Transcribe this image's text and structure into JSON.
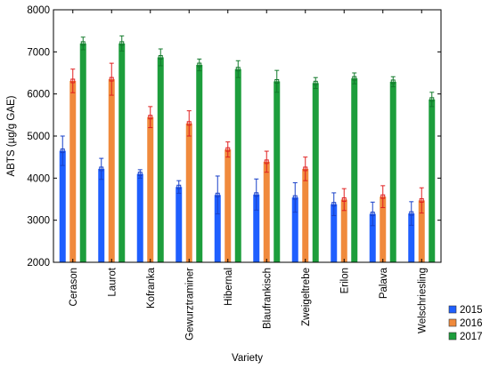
{
  "chart_data": {
    "type": "bar",
    "title": "",
    "xlabel": "Variety",
    "ylabel": "ABTS (µg/g GAE)",
    "ylim": [
      2000,
      8000
    ],
    "yticks": [
      2000,
      3000,
      4000,
      5000,
      6000,
      7000,
      8000
    ],
    "grid": false,
    "legend_position": "bottom-right",
    "categories": [
      "Cerason",
      "Laurot",
      "Kofranka",
      "Gewurztraminer",
      "Hibernal",
      "Blaufrankisch",
      "Zweigeltrebe",
      "Erilon",
      "Palava",
      "Welschriesling"
    ],
    "series": [
      {
        "name": "2015",
        "color": "#1f5fff",
        "values": [
          4650,
          4220,
          4100,
          3790,
          3600,
          3610,
          3540,
          3380,
          3150,
          3160
        ],
        "errors": [
          350,
          250,
          100,
          150,
          450,
          370,
          350,
          270,
          280,
          280
        ]
      },
      {
        "name": "2016",
        "color": "#f08a3c",
        "values": [
          6310,
          6350,
          5450,
          5300,
          4680,
          4390,
          4220,
          3490,
          3560,
          3470
        ],
        "errors": [
          280,
          380,
          250,
          300,
          180,
          250,
          280,
          260,
          260,
          300
        ]
      },
      {
        "name": "2017",
        "color": "#1d9e3c",
        "values": [
          7200,
          7200,
          6870,
          6690,
          6590,
          6300,
          6260,
          6370,
          6290,
          5870
        ],
        "errors": [
          150,
          180,
          200,
          140,
          200,
          260,
          130,
          130,
          120,
          170
        ]
      }
    ]
  }
}
